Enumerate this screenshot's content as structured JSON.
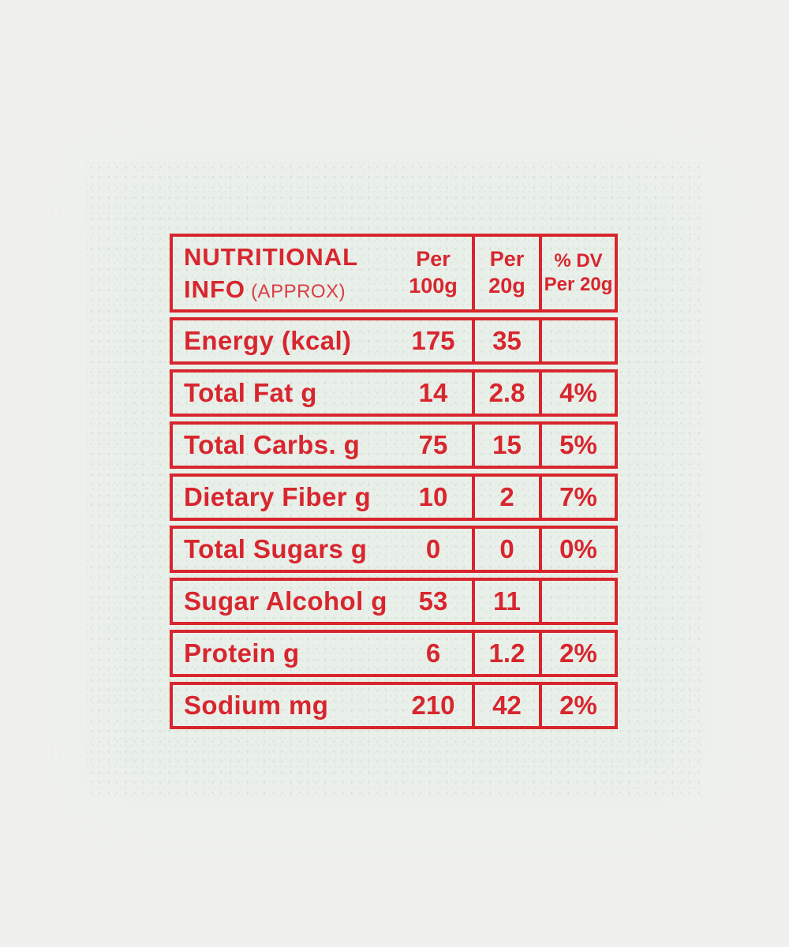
{
  "label": {
    "title": {
      "line1": "NUTRITIONAL",
      "info": "INFO",
      "approx": "(APPROX)"
    },
    "columns": {
      "per100": {
        "line1": "Per",
        "line2": "100g"
      },
      "per20": {
        "line1": "Per",
        "line2": "20g"
      },
      "dv": {
        "line1": "% DV",
        "line2": "Per 20g"
      }
    },
    "rows": [
      {
        "label": "Energy (kcal)",
        "per100": "175",
        "per20": "35",
        "dv": ""
      },
      {
        "label": "Total Fat g",
        "per100": "14",
        "per20": "2.8",
        "dv": "4%"
      },
      {
        "label": "Total Carbs. g",
        "per100": "75",
        "per20": "15",
        "dv": "5%"
      },
      {
        "label": "Dietary Fiber g",
        "per100": "10",
        "per20": "2",
        "dv": "7%"
      },
      {
        "label": "Total Sugars g",
        "per100": "0",
        "per20": "0",
        "dv": "0%"
      },
      {
        "label": "Sugar Alcohol g",
        "per100": "53",
        "per20": "11",
        "dv": ""
      },
      {
        "label": "Protein g",
        "per100": "6",
        "per20": "1.2",
        "dv": "2%"
      },
      {
        "label": "Sodium mg",
        "per100": "210",
        "per20": "42",
        "dv": "2%"
      }
    ],
    "colors": {
      "ink_red": "#d8262e",
      "label_background": "#e9efe9",
      "page_background": "#f0f1ef"
    }
  }
}
